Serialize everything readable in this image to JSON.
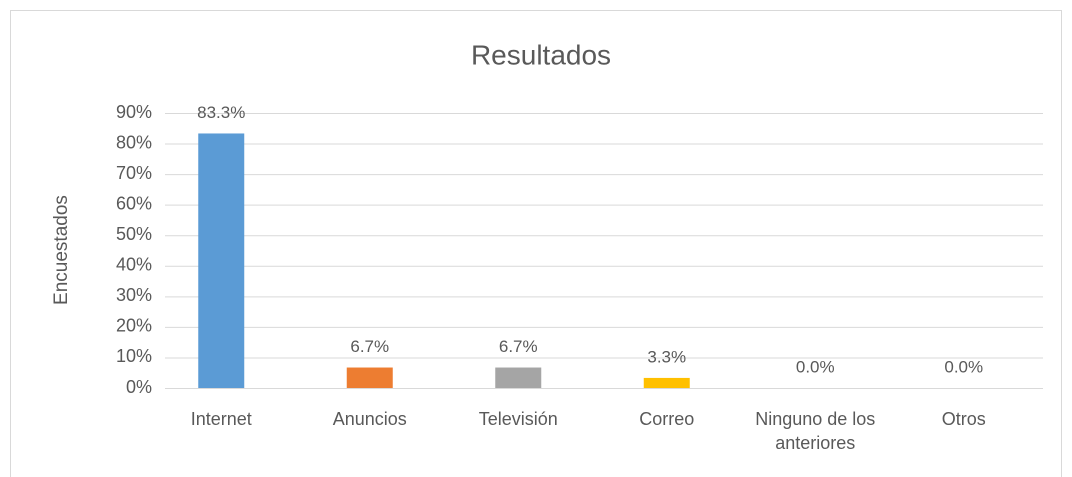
{
  "chart_data": {
    "type": "bar",
    "title": "Resultados",
    "y_label": "Encuestados",
    "categories": [
      "Internet",
      "Anuncios",
      "Televisión",
      "Correo",
      "Ninguno de los anteriores",
      "Otros"
    ],
    "values": [
      83.3,
      6.7,
      6.7,
      3.3,
      0.0,
      0.0
    ],
    "value_labels": [
      "83.3%",
      "6.7%",
      "6.7%",
      "3.3%",
      "0.0%",
      "0.0%"
    ],
    "colors": [
      "#5b9bd5",
      "#ed7d31",
      "#a5a5a5",
      "#ffc000",
      "#4472c4",
      "#70ad47"
    ],
    "ylim": [
      0,
      90
    ],
    "yticks": [
      {
        "value": 0,
        "label": "0%"
      },
      {
        "value": 10,
        "label": "10%"
      },
      {
        "value": 20,
        "label": "20%"
      },
      {
        "value": 30,
        "label": "30%"
      },
      {
        "value": 40,
        "label": "40%"
      },
      {
        "value": 50,
        "label": "50%"
      },
      {
        "value": 60,
        "label": "60%"
      },
      {
        "value": 70,
        "label": "70%"
      },
      {
        "value": 80,
        "label": "80%"
      },
      {
        "value": 90,
        "label": "90%"
      }
    ],
    "grid": true
  }
}
